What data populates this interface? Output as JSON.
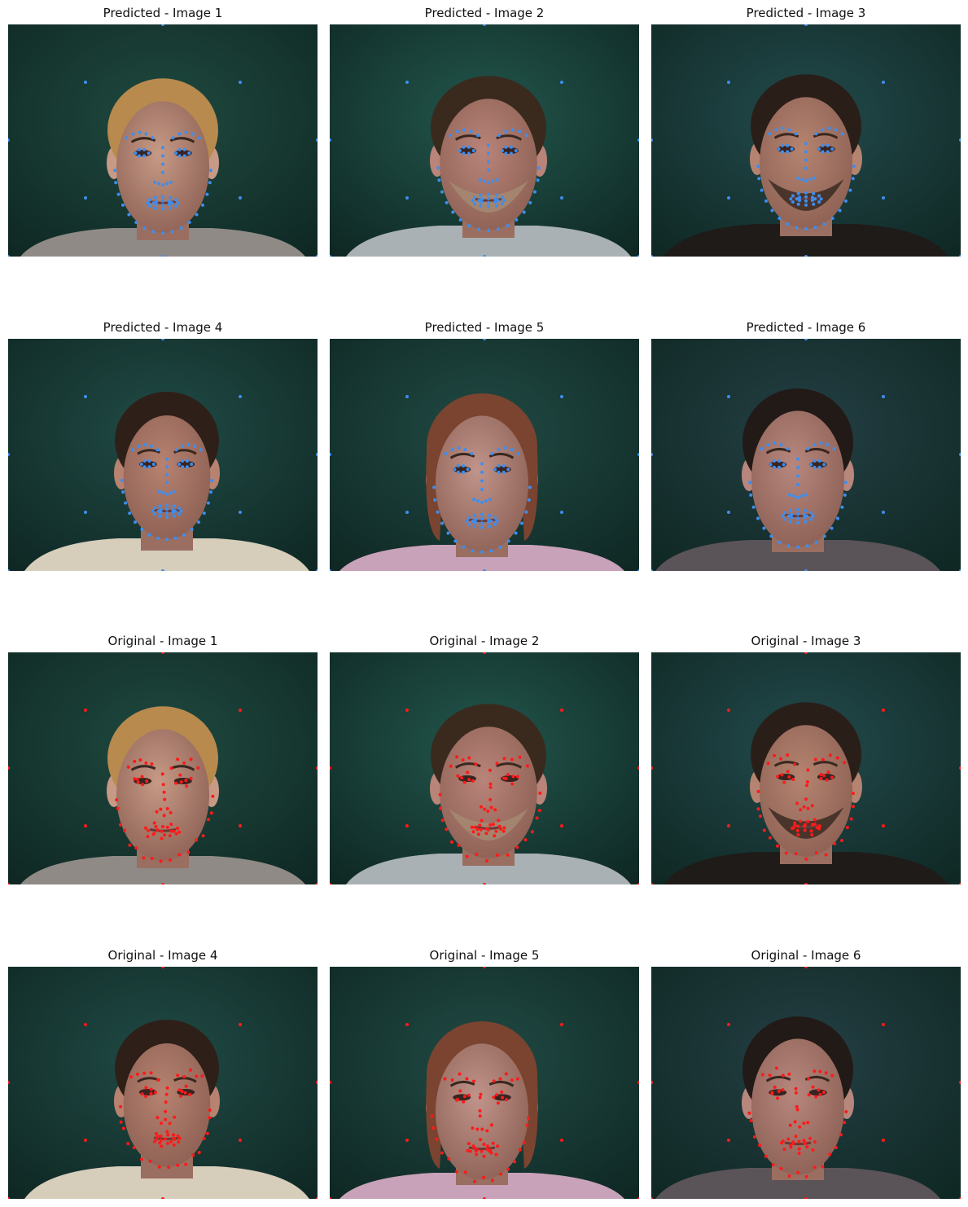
{
  "figure": {
    "panels": [
      {
        "title": "Predicted - Image 1",
        "kind": "predicted",
        "marker_color": "#3d8ef0",
        "subject": 1,
        "hair": "#b88a4e",
        "skin": "#c79a86",
        "shirt": "#8f8a86",
        "bg": "#1f4a40"
      },
      {
        "title": "Predicted - Image 2",
        "kind": "predicted",
        "marker_color": "#3d8ef0",
        "subject": 2,
        "hair": "#3a2a1e",
        "skin": "#b98479",
        "shirt": "#a9b1b4",
        "bg": "#22564c"
      },
      {
        "title": "Predicted - Image 3",
        "kind": "predicted",
        "marker_color": "#3d8ef0",
        "subject": 3,
        "hair": "#2a1e18",
        "skin": "#b58470",
        "shirt": "#1e1b19",
        "bg": "#234a4c"
      },
      {
        "title": "Predicted - Image 4",
        "kind": "predicted",
        "marker_color": "#3d8ef0",
        "subject": 4,
        "hair": "#2e2018",
        "skin": "#b78270",
        "shirt": "#d6cdbb",
        "bg": "#214b46"
      },
      {
        "title": "Predicted - Image 5",
        "kind": "predicted",
        "marker_color": "#3d8ef0",
        "subject": 5,
        "hair": "#7a4430",
        "skin": "#c0948a",
        "shirt": "#c8a2b8",
        "bg": "#214a44"
      },
      {
        "title": "Predicted - Image 6",
        "kind": "predicted",
        "marker_color": "#3d8ef0",
        "subject": 6,
        "hair": "#221a16",
        "skin": "#b7877e",
        "shirt": "#5a5358",
        "bg": "#243f44"
      },
      {
        "title": "Original - Image 1",
        "kind": "original",
        "marker_color": "#ff1a1a",
        "subject": 1,
        "hair": "#b88a4e",
        "skin": "#c79a86",
        "shirt": "#8f8a86",
        "bg": "#1f4a40"
      },
      {
        "title": "Original - Image 2",
        "kind": "original",
        "marker_color": "#ff1a1a",
        "subject": 2,
        "hair": "#3a2a1e",
        "skin": "#b98479",
        "shirt": "#a9b1b4",
        "bg": "#22564c"
      },
      {
        "title": "Original - Image 3",
        "kind": "original",
        "marker_color": "#ff1a1a",
        "subject": 3,
        "hair": "#2a1e18",
        "skin": "#b58470",
        "shirt": "#1e1b19",
        "bg": "#234a4c"
      },
      {
        "title": "Original - Image 4",
        "kind": "original",
        "marker_color": "#ff1a1a",
        "subject": 4,
        "hair": "#2e2018",
        "skin": "#b78270",
        "shirt": "#d6cdbb",
        "bg": "#214b46"
      },
      {
        "title": "Original - Image 5",
        "kind": "original",
        "marker_color": "#ff1a1a",
        "subject": 5,
        "hair": "#7a4430",
        "skin": "#c0948a",
        "shirt": "#c8a2b8",
        "bg": "#214a44"
      },
      {
        "title": "Original - Image 6",
        "kind": "original",
        "marker_color": "#ff1a1a",
        "subject": 6,
        "hair": "#221a16",
        "skin": "#b7877e",
        "shirt": "#5a5358",
        "bg": "#243f44"
      }
    ]
  }
}
